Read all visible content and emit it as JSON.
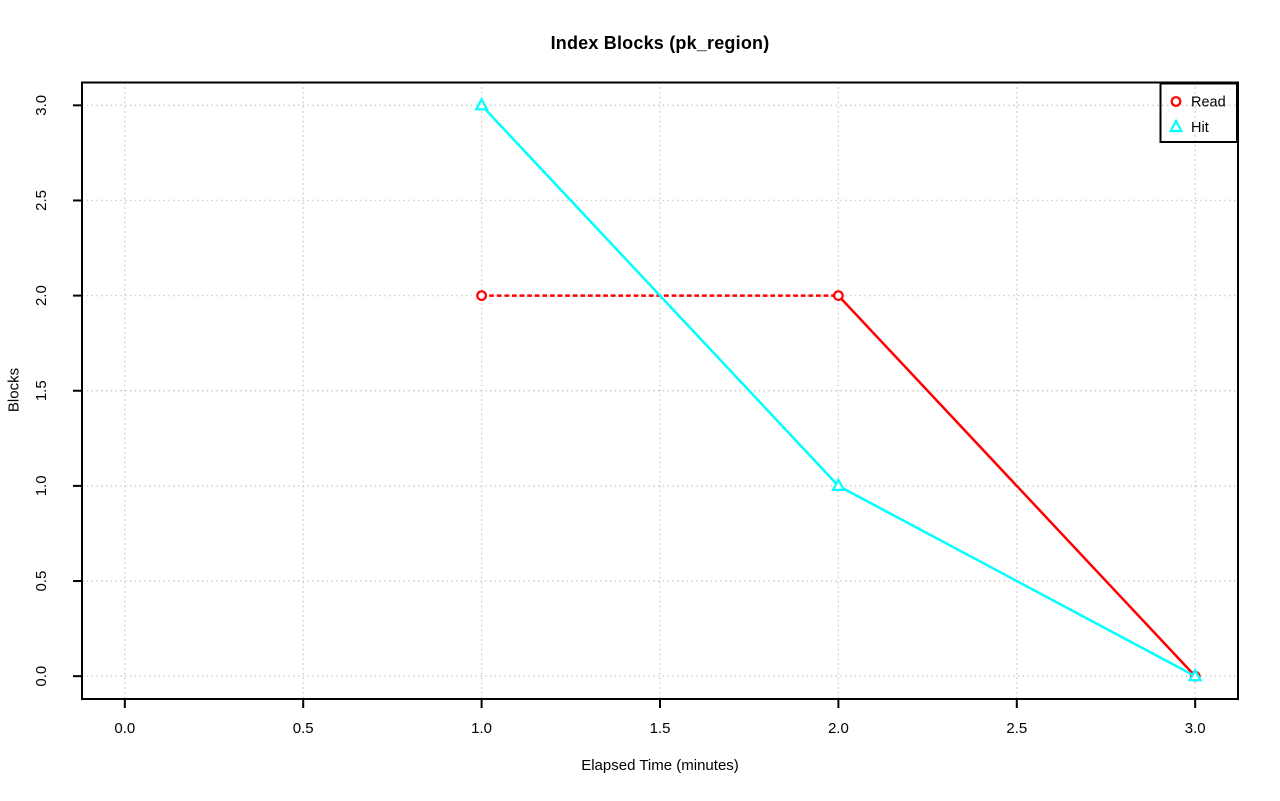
{
  "chart_data": {
    "type": "line",
    "title": "Index Blocks (pk_region)",
    "xlabel": "Elapsed Time (minutes)",
    "ylabel": "Blocks",
    "x": [
      1,
      2,
      3
    ],
    "series": [
      {
        "name": "Read",
        "color": "#ff0000",
        "marker": "circle",
        "values": [
          2,
          2,
          0
        ],
        "dashed_segments": [
          0
        ]
      },
      {
        "name": "Hit",
        "color": "#00ffff",
        "marker": "triangle",
        "values": [
          3,
          1,
          0
        ],
        "dashed_segments": []
      }
    ],
    "x_ticks": [
      0,
      0.5,
      1,
      1.5,
      2,
      2.5,
      3
    ],
    "y_ticks": [
      0,
      0.5,
      1,
      1.5,
      2,
      2.5,
      3
    ],
    "x_tick_labels": [
      "0.0",
      "0.5",
      "1.0",
      "1.5",
      "2.0",
      "2.5",
      "3.0"
    ],
    "y_tick_labels": [
      "0.0",
      "0.5",
      "1.0",
      "1.5",
      "2.0",
      "2.5",
      "3.0"
    ],
    "xlim": [
      -0.12,
      3.12
    ],
    "ylim": [
      -0.12,
      3.12
    ],
    "grid": true,
    "grid_style": "dotted",
    "grid_color": "#c8c8c8",
    "axis_color": "#000000",
    "background": "#ffffff",
    "legend": {
      "position": "top-right",
      "entries": [
        "Read",
        "Hit"
      ]
    }
  }
}
